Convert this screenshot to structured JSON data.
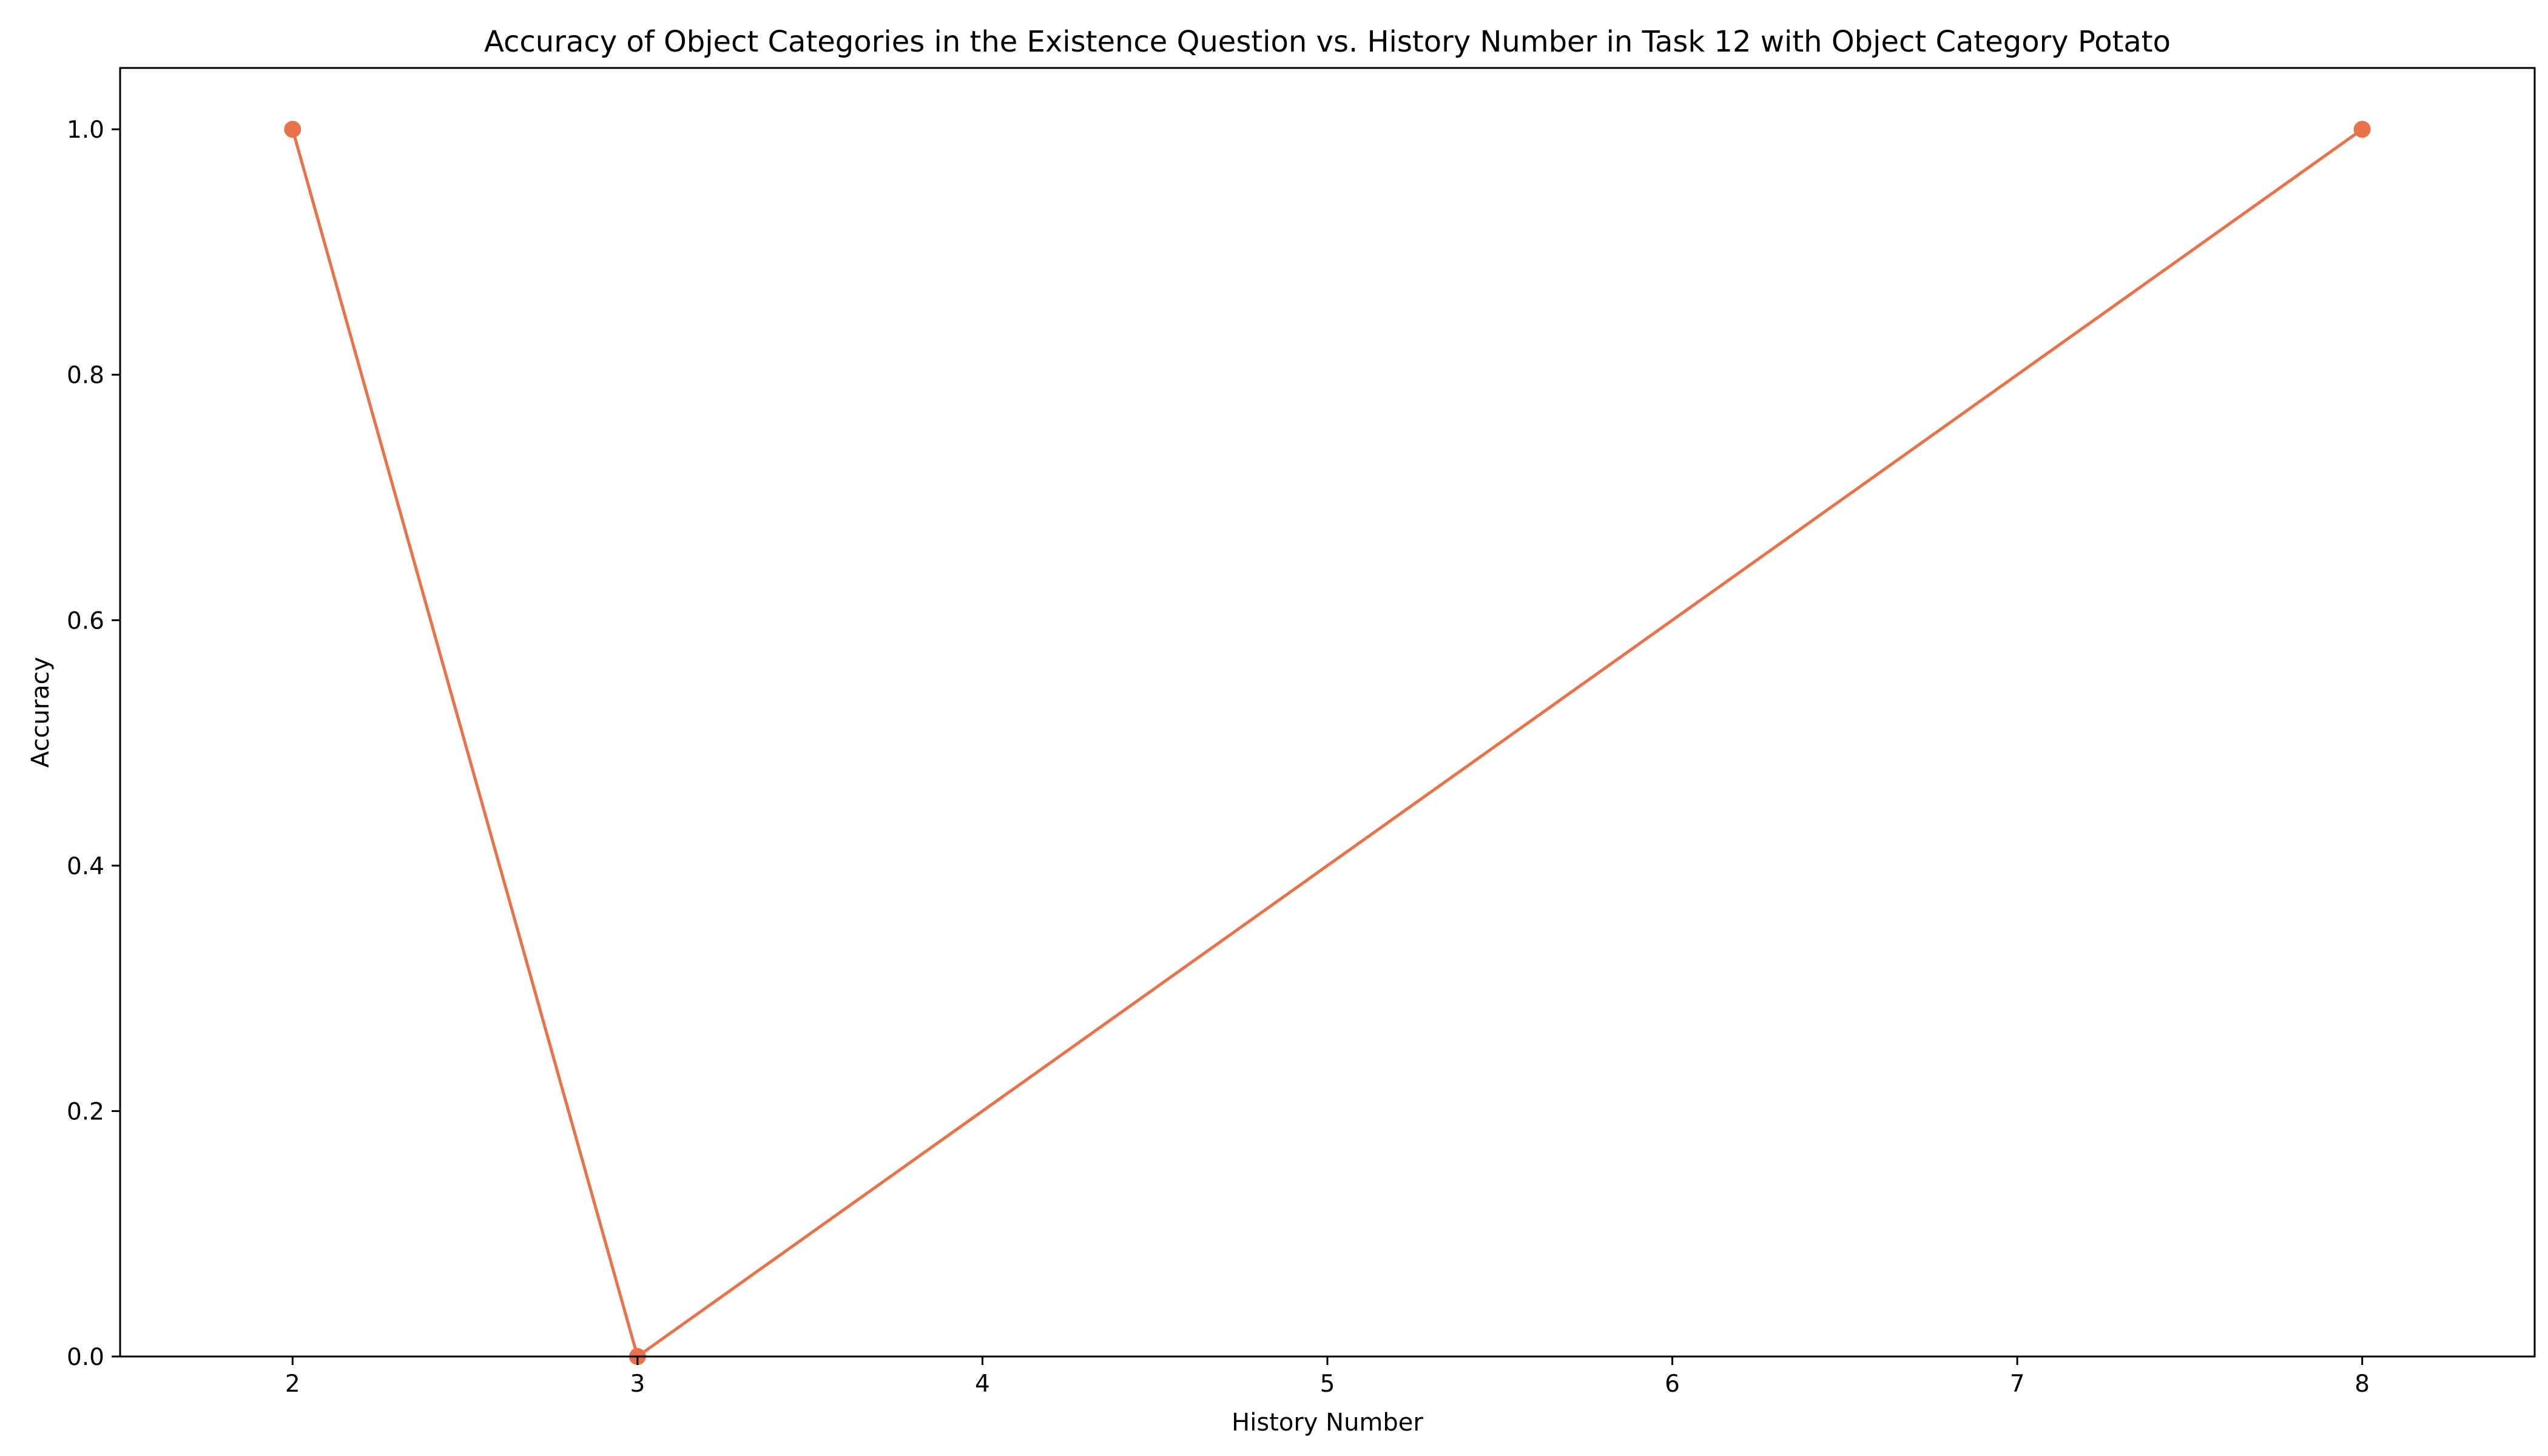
{
  "chart_data": {
    "type": "line",
    "title": "Accuracy of Object Categories in the Existence Question vs. History Number in Task 12 with Object Category Potato",
    "xlabel": "History Number",
    "ylabel": "Accuracy",
    "xlim": [
      1.5,
      8.5
    ],
    "ylim": [
      0.0,
      1.05
    ],
    "x_ticks": [
      2,
      3,
      4,
      5,
      6,
      7,
      8
    ],
    "y_ticks": [
      0.0,
      0.2,
      0.4,
      0.6,
      0.8,
      1.0
    ],
    "x_tick_labels": [
      "2",
      "3",
      "4",
      "5",
      "6",
      "7",
      "8"
    ],
    "y_tick_labels": [
      "0.0",
      "0.2",
      "0.4",
      "0.6",
      "0.8",
      "1.0"
    ],
    "grid": false,
    "legend": false,
    "series": [
      {
        "color": "#E8734A",
        "marker": "circle",
        "points": [
          {
            "x": 2,
            "y": 1.0
          },
          {
            "x": 3,
            "y": 0.0
          },
          {
            "x": 8,
            "y": 1.0
          }
        ]
      }
    ]
  }
}
